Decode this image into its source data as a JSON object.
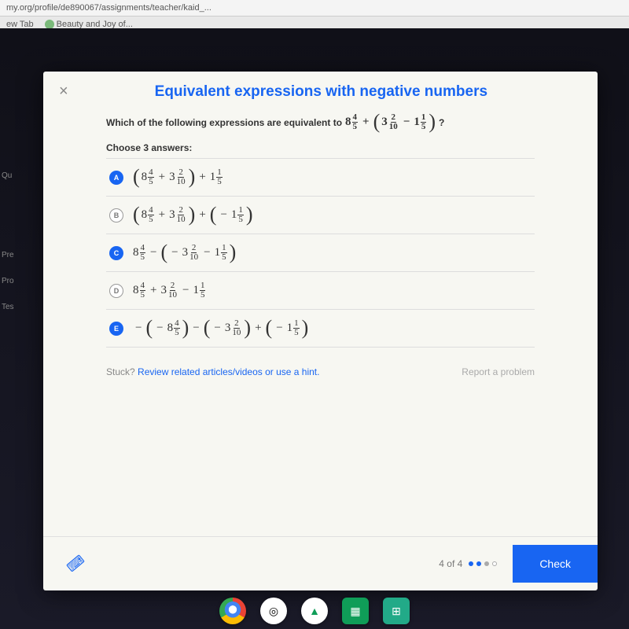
{
  "browser": {
    "url": "my.org/profile/de890067/assignments/teacher/kaid_...",
    "bookmarks": [
      "ew Tab",
      "Beauty and Joy of..."
    ]
  },
  "sidebar_peek": [
    "Qu",
    "Pre",
    "Pro",
    "Tes"
  ],
  "modal": {
    "title": "Equivalent expressions with negative numbers",
    "question_lead": "Which of the following expressions are equivalent to",
    "question_tail": "?",
    "instruction": "Choose 3 answers:",
    "expr_main": {
      "t1": {
        "whole": "8",
        "n": "4",
        "d": "5"
      },
      "op1": "+",
      "t2": {
        "whole": "3",
        "n": "2",
        "d": "10"
      },
      "op2": "−",
      "t3": {
        "whole": "1",
        "n": "1",
        "d": "5"
      }
    },
    "choices": [
      {
        "letter": "A",
        "selected": true,
        "p1": [
          {
            "whole": "8",
            "n": "4",
            "d": "5"
          },
          "+",
          {
            "whole": "3",
            "n": "2",
            "d": "10"
          }
        ],
        "mid": "+",
        "p2": [
          {
            "whole": "1",
            "n": "1",
            "d": "5"
          }
        ],
        "p2_paren": false
      },
      {
        "letter": "B",
        "selected": false,
        "p1": [
          {
            "whole": "8",
            "n": "4",
            "d": "5"
          },
          "+",
          {
            "whole": "3",
            "n": "2",
            "d": "10"
          }
        ],
        "mid": "+",
        "p2": [
          "−",
          {
            "whole": "1",
            "n": "1",
            "d": "5"
          }
        ],
        "p2_paren": true
      },
      {
        "letter": "C",
        "selected": true,
        "plain_lead": {
          "whole": "8",
          "n": "4",
          "d": "5"
        },
        "mid": "−",
        "p2": [
          "−",
          {
            "whole": "3",
            "n": "2",
            "d": "10"
          },
          "−",
          {
            "whole": "1",
            "n": "1",
            "d": "5"
          }
        ],
        "p2_paren": true
      },
      {
        "letter": "D",
        "selected": false,
        "flat": [
          {
            "whole": "8",
            "n": "4",
            "d": "5"
          },
          "+",
          {
            "whole": "3",
            "n": "2",
            "d": "10"
          },
          "−",
          {
            "whole": "1",
            "n": "1",
            "d": "5"
          }
        ]
      },
      {
        "letter": "E",
        "selected": true,
        "triple": [
          {
            "neg_out": "−",
            "neg_in": "−",
            "m": {
              "whole": "8",
              "n": "4",
              "d": "5"
            }
          },
          "−",
          {
            "neg_out": "",
            "neg_in": "−",
            "m": {
              "whole": "3",
              "n": "2",
              "d": "10"
            }
          },
          "+",
          {
            "neg_out": "",
            "neg_in": "−",
            "m": {
              "whole": "1",
              "n": "1",
              "d": "5"
            }
          }
        ]
      }
    ],
    "stuck_label": "Stuck?",
    "stuck_link": "Review related articles/videos or use a hint.",
    "report": "Report a problem",
    "progress_text": "4 of 4",
    "check_label": "Check"
  },
  "colors": {
    "accent": "#1865f2",
    "panel": "#f7f7f2"
  }
}
